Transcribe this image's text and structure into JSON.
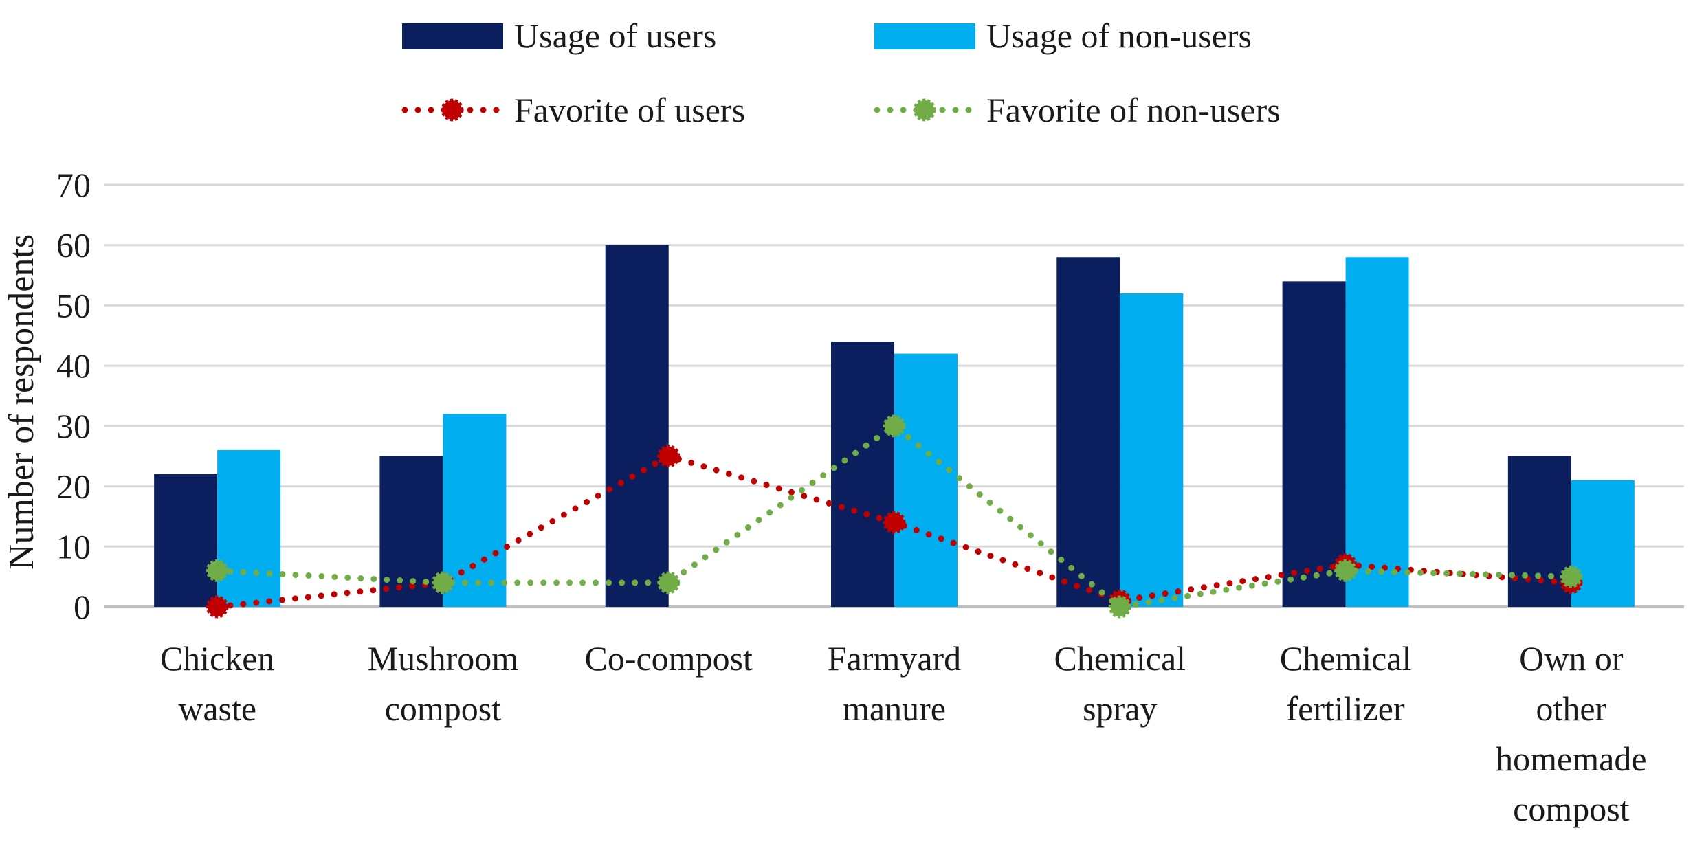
{
  "colors": {
    "usage_users": "#0b1f5e",
    "usage_nonusers": "#00aeef",
    "fav_users": "#c00000",
    "fav_nonusers": "#70ad47",
    "grid": "#d9d9d9",
    "axis": "#bfbfbf"
  },
  "chart_data": {
    "type": "bar",
    "title": "",
    "xlabel": "",
    "ylabel": "Number of respondents",
    "ylim": [
      0,
      70
    ],
    "yticks": [
      0,
      10,
      20,
      30,
      40,
      50,
      60,
      70
    ],
    "ytick_labels": [
      "0",
      "10",
      "20",
      "30",
      "40",
      "50",
      "60",
      "70"
    ],
    "grid": true,
    "legend_position": "top-center",
    "categories": [
      [
        "Chicken",
        "waste"
      ],
      [
        "Mushroom",
        "compost"
      ],
      [
        "Co-compost"
      ],
      [
        "Farmyard",
        "manure"
      ],
      [
        "Chemical",
        "spray"
      ],
      [
        "Chemical",
        "fertilizer"
      ],
      [
        "Own or",
        "other",
        "homemade",
        "compost"
      ]
    ],
    "series": [
      {
        "name": "Usage of users",
        "kind": "bar",
        "color_key": "usage_users",
        "values": [
          22,
          25,
          60,
          44,
          58,
          54,
          25
        ]
      },
      {
        "name": "Usage of non-users",
        "kind": "bar",
        "color_key": "usage_nonusers",
        "values": [
          26,
          32,
          0,
          42,
          52,
          58,
          21
        ]
      },
      {
        "name": "Favorite of users",
        "kind": "line",
        "color_key": "fav_users",
        "values": [
          0,
          4,
          25,
          14,
          1,
          7,
          4
        ]
      },
      {
        "name": "Favorite of non-users",
        "kind": "line",
        "color_key": "fav_nonusers",
        "values": [
          6,
          4,
          4,
          30,
          0,
          6,
          5
        ]
      }
    ]
  }
}
